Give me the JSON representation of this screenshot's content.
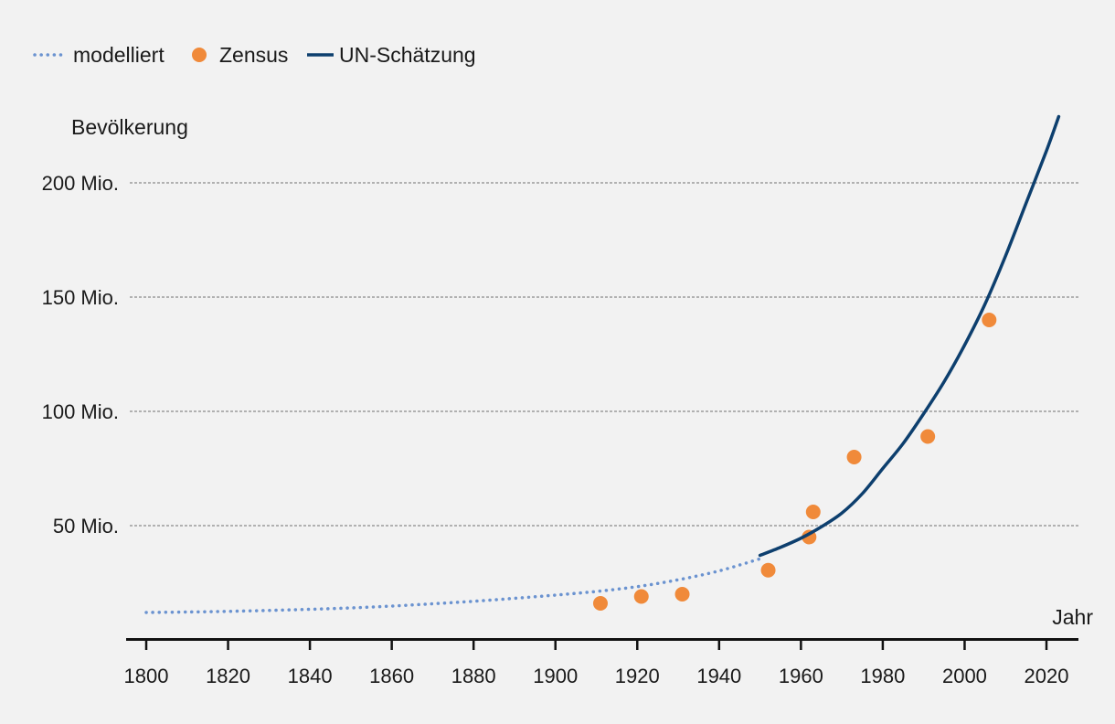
{
  "chart_data": {
    "type": "line",
    "title": "",
    "ylabel": "Bevölkerung",
    "xlabel": "Jahr",
    "xlim": [
      1795,
      2028
    ],
    "ylim": [
      0,
      230
    ],
    "x_ticks": [
      1800,
      1820,
      1840,
      1860,
      1880,
      1900,
      1920,
      1940,
      1960,
      1980,
      2000,
      2020
    ],
    "y_ticks": [
      {
        "value": 50,
        "label": "50 Mio."
      },
      {
        "value": 100,
        "label": "100 Mio."
      },
      {
        "value": 150,
        "label": "150 Mio."
      },
      {
        "value": 200,
        "label": "200 Mio."
      }
    ],
    "grid": true,
    "legend_position": "top-left",
    "series": [
      {
        "name": "modelliert",
        "kind": "dotted-line",
        "color": "#6b93d0",
        "x": [
          1800,
          1810,
          1820,
          1830,
          1840,
          1850,
          1860,
          1870,
          1880,
          1890,
          1900,
          1910,
          1920,
          1930,
          1940,
          1950
        ],
        "values": [
          12,
          12.2,
          12.5,
          12.9,
          13.4,
          14,
          14.8,
          15.8,
          16.9,
          18.2,
          19.6,
          21.2,
          23.3,
          26.3,
          30.2,
          35.5
        ]
      },
      {
        "name": "Zensus",
        "kind": "points",
        "color": "#f08a3a",
        "x": [
          1911,
          1921,
          1931,
          1952,
          1962,
          1963,
          1973,
          1991,
          2006
        ],
        "values": [
          16,
          19,
          20,
          30.5,
          45,
          56,
          80,
          89,
          140
        ]
      },
      {
        "name": "UN-Schätzung",
        "kind": "solid-line",
        "color": "#0d3f6e",
        "x": [
          1950,
          1955,
          1960,
          1965,
          1970,
          1975,
          1980,
          1985,
          1990,
          1995,
          2000,
          2005,
          2010,
          2015,
          2020,
          2023
        ],
        "values": [
          37,
          40.5,
          44.5,
          49.5,
          55.5,
          64,
          75,
          86,
          99,
          113,
          129,
          147,
          168,
          191,
          214,
          229
        ]
      }
    ]
  }
}
